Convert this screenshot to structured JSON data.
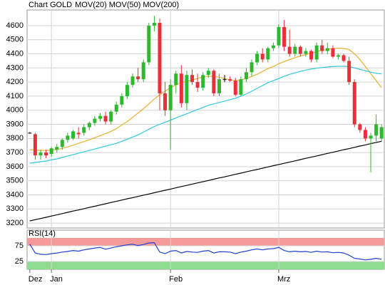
{
  "chart_data": [
    {
      "type": "candlestick",
      "title": "Chart GOLD",
      "title_color": "#e8602c",
      "open": [
        3840,
        3830,
        3680,
        3700,
        3690,
        3720,
        3740,
        3790,
        3800,
        3840,
        3840,
        3880,
        3910,
        3940,
        3960,
        3920,
        3990,
        4040,
        4100,
        4180,
        4240,
        4220,
        4340,
        4600,
        4620,
        4120,
        4000,
        4180,
        4260,
        4050,
        4250,
        4200,
        4160,
        4250,
        4280,
        4120,
        4220,
        4220,
        4210,
        4110,
        4220,
        4270,
        4340,
        4400,
        4360,
        4440,
        4460,
        4590,
        4450,
        4400,
        4450,
        4400,
        4420,
        4360,
        4460,
        4420,
        4440,
        4380,
        4390,
        4350,
        4200,
        3900,
        3860,
        3800,
        3820,
        3800
      ],
      "high": [
        3845,
        3840,
        3720,
        3720,
        3740,
        3760,
        3800,
        3840,
        3860,
        3880,
        3900,
        3920,
        3960,
        3980,
        3990,
        4000,
        4060,
        4120,
        4200,
        4260,
        4300,
        4360,
        4620,
        4670,
        4650,
        4200,
        4220,
        4280,
        4320,
        4280,
        4290,
        4260,
        4270,
        4300,
        4290,
        4260,
        4250,
        4240,
        4230,
        4240,
        4300,
        4360,
        4420,
        4440,
        4450,
        4480,
        4610,
        4640,
        4570,
        4470,
        4460,
        4440,
        4430,
        4480,
        4500,
        4480,
        4460,
        4400,
        4400,
        4380,
        4220,
        3910,
        3880,
        3840,
        3970,
        3900
      ],
      "low": [
        3835,
        3650,
        3650,
        3660,
        3670,
        3700,
        3720,
        3770,
        3790,
        3800,
        3820,
        3860,
        3890,
        3920,
        3900,
        3900,
        3970,
        4020,
        4080,
        4160,
        4200,
        4200,
        4320,
        4560,
        4000,
        3960,
        3720,
        4120,
        4020,
        4000,
        4180,
        4130,
        4140,
        4230,
        4100,
        4100,
        4200,
        4200,
        4100,
        4100,
        4200,
        4240,
        4320,
        4340,
        4340,
        4420,
        4440,
        4420,
        4380,
        4380,
        4380,
        4380,
        4340,
        4340,
        4400,
        4400,
        4370,
        4360,
        4340,
        4180,
        3880,
        3840,
        3780,
        3560,
        3780,
        3780
      ],
      "close": [
        3840,
        3680,
        3700,
        3680,
        3730,
        3740,
        3790,
        3820,
        3850,
        3830,
        3880,
        3910,
        3940,
        3960,
        3920,
        3990,
        4040,
        4100,
        4180,
        4240,
        4220,
        4340,
        4600,
        4620,
        4120,
        4000,
        4180,
        4260,
        4050,
        4250,
        4200,
        4160,
        4250,
        4280,
        4120,
        4220,
        4220,
        4210,
        4110,
        4220,
        4270,
        4340,
        4400,
        4360,
        4440,
        4460,
        4590,
        4450,
        4400,
        4450,
        4400,
        4420,
        4360,
        4460,
        4420,
        4440,
        4380,
        4390,
        4350,
        4200,
        3900,
        3860,
        3800,
        3820,
        3900,
        3880
      ],
      "up_color": "#2eb82e",
      "down_color": "#e8303a",
      "flat_color": "#000000",
      "series": [
        {
          "name": "MOV(20)",
          "color": "#e8b030",
          "values": [
            3720,
            3718,
            3715,
            3715,
            3718,
            3722,
            3730,
            3740,
            3752,
            3765,
            3778,
            3790,
            3805,
            3820,
            3835,
            3850,
            3870,
            3895,
            3920,
            3950,
            3980,
            4010,
            4045,
            4080,
            4110,
            4135,
            4160,
            4180,
            4195,
            4205,
            4215,
            4225,
            4235,
            4240,
            4240,
            4235,
            4225,
            4215,
            4210,
            4215,
            4225,
            4240,
            4255,
            4275,
            4295,
            4310,
            4330,
            4345,
            4360,
            4372,
            4385,
            4395,
            4405,
            4415,
            4425,
            4432,
            4438,
            4440,
            4438,
            4430,
            4400,
            4360,
            4310,
            4260,
            4210,
            4160
          ]
        },
        {
          "name": "MOV(50)",
          "color": "#30c8e0",
          "values": [
            3625,
            3630,
            3635,
            3640,
            3648,
            3655,
            3665,
            3675,
            3685,
            3695,
            3705,
            3715,
            3725,
            3735,
            3745,
            3755,
            3765,
            3780,
            3795,
            3810,
            3825,
            3845,
            3865,
            3885,
            3900,
            3915,
            3930,
            3945,
            3960,
            3975,
            3990,
            4005,
            4020,
            4035,
            4045,
            4055,
            4065,
            4075,
            4085,
            4100,
            4115,
            4135,
            4155,
            4175,
            4195,
            4210,
            4225,
            4240,
            4255,
            4265,
            4275,
            4285,
            4292,
            4298,
            4303,
            4307,
            4310,
            4312,
            4312,
            4310,
            4300,
            4290,
            4280,
            4270,
            4262,
            4258
          ]
        },
        {
          "name": "MOV(200)",
          "color": "#000000",
          "values": [
            3215,
            3224,
            3232,
            3241,
            3250,
            3258,
            3267,
            3276,
            3285,
            3293,
            3302,
            3311,
            3319,
            3328,
            3337,
            3346,
            3354,
            3363,
            3372,
            3380,
            3389,
            3398,
            3406,
            3415,
            3424,
            3433,
            3441,
            3450,
            3459,
            3467,
            3476,
            3485,
            3493,
            3502,
            3511,
            3520,
            3528,
            3537,
            3546,
            3554,
            3563,
            3572,
            3580,
            3589,
            3598,
            3607,
            3615,
            3624,
            3633,
            3641,
            3650,
            3659,
            3667,
            3676,
            3685,
            3694,
            3702,
            3711,
            3720,
            3728,
            3737,
            3746,
            3754,
            3763,
            3772,
            3780
          ]
        }
      ],
      "ylim": [
        3165,
        4711
      ],
      "yticks": [
        3200,
        3300,
        3400,
        3500,
        3600,
        3700,
        3800,
        3900,
        4000,
        4100,
        4200,
        4300,
        4400,
        4500,
        4600
      ],
      "grid": true
    },
    {
      "type": "line",
      "categories": [
        "Dez",
        null,
        null,
        null,
        "Jan",
        null,
        null,
        null,
        null,
        null,
        null,
        null,
        null,
        null,
        null,
        null,
        null,
        null,
        null,
        null,
        null,
        null,
        null,
        null,
        null,
        null,
        "Feb",
        null,
        null,
        null,
        null,
        null,
        null,
        null,
        null,
        null,
        null,
        null,
        null,
        null,
        null,
        null,
        null,
        null,
        null,
        null,
        "Mrz",
        null,
        null,
        null,
        null,
        null,
        null,
        null,
        null,
        null,
        null,
        null,
        null,
        null,
        null,
        null,
        null,
        null,
        null,
        null
      ],
      "series": [
        {
          "name": "RSI(14)",
          "color": "#2040d0",
          "values": [
            80,
            52,
            48,
            47,
            50,
            52,
            55,
            57,
            60,
            58,
            62,
            65,
            68,
            70,
            64,
            68,
            72,
            75,
            78,
            80,
            76,
            79,
            84,
            85,
            55,
            50,
            58,
            60,
            52,
            57,
            55,
            54,
            58,
            60,
            52,
            56,
            56,
            55,
            50,
            55,
            58,
            62,
            65,
            62,
            65,
            66,
            70,
            60,
            56,
            58,
            56,
            57,
            54,
            58,
            55,
            56,
            53,
            54,
            52,
            45,
            35,
            33,
            30,
            32,
            35,
            32
          ]
        }
      ],
      "ylim": [
        0,
        100
      ],
      "yticks": [
        25,
        75
      ],
      "upper_band_color": "#f49a9a",
      "lower_band_color": "#8edc8e",
      "grid": true
    }
  ]
}
